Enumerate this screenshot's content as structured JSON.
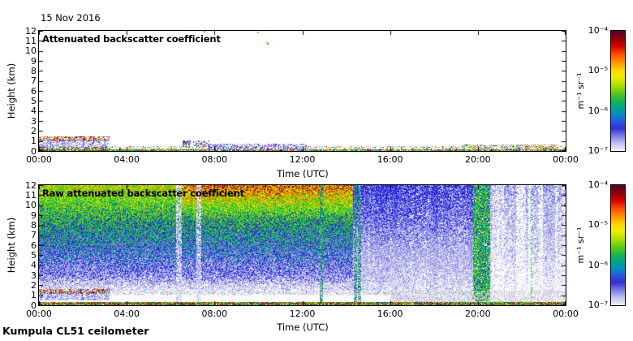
{
  "page": {
    "date": "15 Nov 2016",
    "footer": "Kumpula CL51 ceilometer",
    "background": "#ffffff"
  },
  "chart_data": [
    {
      "id": "attenuated-backscatter",
      "type": "heatmap",
      "title": "Attenuated backscatter coefficient",
      "x": {
        "label": "Time (UTC)",
        "ticks": [
          "00:00",
          "04:00",
          "08:00",
          "12:00",
          "16:00",
          "20:00",
          "00:00"
        ],
        "range_hours": [
          0,
          24
        ],
        "tick_interval_hours": 4
      },
      "y": {
        "label": "Height (km)",
        "ticks": [
          "12",
          "11",
          "10",
          "9",
          "8",
          "7",
          "6",
          "5",
          "4",
          "3",
          "2",
          "1",
          "0"
        ],
        "range_km": [
          0,
          12
        ]
      },
      "colorbar": {
        "label": "m⁻¹ sr⁻¹",
        "ticks": [
          "10⁻⁴",
          "10⁻⁵",
          "10⁻⁶",
          "10⁻⁷"
        ],
        "scale": "log",
        "min": 1e-07,
        "max": 0.0001
      },
      "background": "#ffffff",
      "seed": 13,
      "features": [
        {
          "kind": "speckle",
          "t": [
            0,
            24
          ],
          "h": [
            0.1,
            0.45
          ],
          "density": 0.4,
          "palette": "surface"
        },
        {
          "kind": "speckle",
          "t": [
            0,
            24
          ],
          "h": [
            0,
            0.12
          ],
          "density": 0.85,
          "palette": "groundline"
        },
        {
          "kind": "speckle",
          "t": [
            0,
            3.2
          ],
          "h": [
            0.35,
            1.2
          ],
          "density": 0.75,
          "palette": "aerosol_body"
        },
        {
          "kind": "speckle",
          "t": [
            0,
            3.2
          ],
          "h": [
            1.05,
            1.4
          ],
          "density": 0.5,
          "palette": "aerosol_top"
        },
        {
          "kind": "speckle",
          "t": [
            0,
            3.2
          ],
          "h": [
            0,
            0.35
          ],
          "density": 0.5,
          "palette": "ground_dense"
        },
        {
          "kind": "speckle",
          "t": [
            6.55,
            6.9
          ],
          "h": [
            0.45,
            1.0
          ],
          "density": 0.5,
          "palette": "dark_clump"
        },
        {
          "kind": "speckle",
          "t": [
            7.05,
            7.75
          ],
          "h": [
            0.45,
            1.05
          ],
          "density": 0.45,
          "palette": "dark_clump"
        },
        {
          "kind": "speckle",
          "t": [
            7.7,
            12.2
          ],
          "h": [
            0.1,
            0.65
          ],
          "density": 0.5,
          "palette": "blue_strip"
        },
        {
          "kind": "speckle",
          "t": [
            19.3,
            23.6
          ],
          "h": [
            0.1,
            0.6
          ],
          "density": 0.5,
          "palette": "surface_dense"
        },
        {
          "kind": "dots",
          "points": [
            {
              "t": 7.55,
              "h": 11.9,
              "color": "#22bb22"
            },
            {
              "t": 7.7,
              "h": 11.1,
              "color": "#ff9000"
            },
            {
              "t": 8.2,
              "h": 11.3,
              "color": "#ff9000"
            },
            {
              "t": 10.0,
              "h": 11.8,
              "color": "#ff9000"
            },
            {
              "t": 10.4,
              "h": 10.9,
              "color": "#ffcc00"
            },
            {
              "t": 10.42,
              "h": 10.68,
              "color": "#00aacc"
            }
          ]
        }
      ]
    },
    {
      "id": "raw-attenuated-backscatter",
      "type": "heatmap",
      "title": "Raw attenuated backscatter coefficient",
      "x": {
        "label": "Time (UTC)",
        "ticks": [
          "00:00",
          "04:00",
          "08:00",
          "12:00",
          "16:00",
          "20:00",
          "00:00"
        ],
        "range_hours": [
          0,
          24
        ],
        "tick_interval_hours": 4
      },
      "y": {
        "label": "Height (km)",
        "ticks": [
          "12",
          "11",
          "10",
          "9",
          "8",
          "7",
          "6",
          "5",
          "4",
          "3",
          "2",
          "1",
          "0"
        ],
        "range_km": [
          0,
          12
        ]
      },
      "colorbar": {
        "label": "m⁻¹ sr⁻¹",
        "ticks": [
          "10⁻⁴",
          "10⁻⁵",
          "10⁻⁶",
          "10⁻⁷"
        ],
        "scale": "log",
        "min": 1e-07,
        "max": 0.0001
      },
      "background": "#ffffff",
      "seed": 29,
      "features": [
        {
          "kind": "field",
          "h": [
            0.35,
            12
          ],
          "segments": [
            {
              "t": [
                0,
                14.3
              ],
              "mode": "bright",
              "base": 0.14,
              "hslope": 0.58,
              "noise": 0.36,
              "bump": 0.16,
              "bump_t": [
                6.5,
                14.3
              ],
              "h0": 1.1
            },
            {
              "t": [
                14.3,
                16
              ],
              "mode": "blue",
              "base": 0.1,
              "hslope": 0.3,
              "noise": 0.22,
              "cap": 0.44,
              "sparse": 0.3,
              "h0": 1.1
            },
            {
              "t": [
                16,
                19.8
              ],
              "mode": "blue",
              "base": 0.1,
              "hslope": 0.3,
              "noise": 0.22,
              "cap": 0.44,
              "sparse": 0.3,
              "h0": 0.35
            },
            {
              "t": [
                19.8,
                20.55
              ],
              "mode": "green",
              "base": 0.42,
              "noise": 0.27,
              "h0": 0.45
            },
            {
              "t": [
                20.55,
                24
              ],
              "mode": "sparse",
              "base": 0.08,
              "hslope": 0.18,
              "noise": 0.2,
              "cap": 0.45,
              "green_col_prob": 0.05,
              "h0": 0.35
            }
          ]
        },
        {
          "kind": "vstreaks",
          "h": [
            0.4,
            12
          ],
          "density": 0.72,
          "list": [
            {
              "t": 6.35,
              "w": 0.14,
              "palette": "pale_streak"
            },
            {
              "t": 7.25,
              "w": 0.11,
              "palette": "pale_streak"
            },
            {
              "t": 12.85,
              "w": 0.08,
              "palette": "teal_streak"
            },
            {
              "t": 14.42,
              "w": 0.07,
              "palette": "teal_streak"
            },
            {
              "t": 14.6,
              "w": 0.07,
              "palette": "teal_streak"
            }
          ]
        },
        {
          "kind": "speckle",
          "t": [
            3.2,
            16
          ],
          "h": [
            1.0,
            1.35
          ],
          "density": 0.3,
          "palette": "grey_speckle"
        },
        {
          "kind": "speckle",
          "t": [
            16,
            24
          ],
          "h": [
            0.3,
            1.4
          ],
          "density": 0.45,
          "palette": "grey_speckle"
        },
        {
          "kind": "speckle",
          "t": [
            0,
            3.2
          ],
          "h": [
            0.55,
            1.35
          ],
          "density": 0.8,
          "palette": "aerosol_body"
        },
        {
          "kind": "speckle",
          "t": [
            0,
            3.2
          ],
          "h": [
            1.2,
            1.55
          ],
          "density": 0.55,
          "palette": "aerosol_top"
        },
        {
          "kind": "speckle",
          "t": [
            0,
            24
          ],
          "h": [
            0,
            0.3
          ],
          "density": 0.95,
          "palette": "ground_dense"
        }
      ]
    }
  ],
  "palettes": {
    "surface": [
      [
        "#c8c8c8",
        3
      ],
      [
        "#e81000",
        1.2
      ],
      [
        "#22bb22",
        1.2
      ],
      [
        "#2828d8",
        1
      ],
      [
        "#f0e400",
        0.6
      ],
      [
        "#ff9000",
        0.5
      ],
      [
        "#ffffff",
        2
      ]
    ],
    "surface_dense": [
      [
        "#c8c8c8",
        2
      ],
      [
        "#e81000",
        1.5
      ],
      [
        "#22bb22",
        1.5
      ],
      [
        "#2828d8",
        1.2
      ],
      [
        "#f0e400",
        1
      ],
      [
        "#ff9000",
        0.8
      ],
      [
        "#00a878",
        0.5
      ],
      [
        "#ffffff",
        1.2
      ]
    ],
    "groundline": [
      [
        "#22bb22",
        3
      ],
      [
        "#0a8a0a",
        1.5
      ],
      [
        "#e81000",
        1.5
      ],
      [
        "#f0e400",
        0.8
      ],
      [
        "#2828d8",
        0.7
      ],
      [
        "#111111",
        0.4
      ]
    ],
    "aerosol_body": [
      [
        "#c8c8f4",
        3
      ],
      [
        "#9898e8",
        2.5
      ],
      [
        "#6868e0",
        1.5
      ],
      [
        "#ffffff",
        2
      ],
      [
        "#2828d8",
        0.7
      ]
    ],
    "aerosol_top": [
      [
        "#e81000",
        2
      ],
      [
        "#7c0028",
        1.5
      ],
      [
        "#22bb22",
        1.3
      ],
      [
        "#f0e400",
        1
      ],
      [
        "#ff9000",
        1
      ],
      [
        "#2828d8",
        0.8
      ],
      [
        "#111111",
        0.5
      ]
    ],
    "dark_clump": [
      [
        "#333333",
        2
      ],
      [
        "#555577",
        1.5
      ],
      [
        "#2828d8",
        1.2
      ],
      [
        "#9898e8",
        1
      ],
      [
        "#7c0028",
        0.6
      ],
      [
        "#22bb22",
        0.4
      ]
    ],
    "blue_strip": [
      [
        "#2828d8",
        2
      ],
      [
        "#9898e8",
        2
      ],
      [
        "#c8c8f4",
        1.5
      ],
      [
        "#00a878",
        0.4
      ],
      [
        "#e81000",
        0.4
      ]
    ],
    "grey_speckle": [
      [
        "#d0d0d0",
        3
      ],
      [
        "#b8b8c8",
        1.5
      ],
      [
        "#e8e8f0",
        2
      ]
    ],
    "ground_dense": [
      [
        "#22bb22",
        2.5
      ],
      [
        "#0a8a0a",
        1.5
      ],
      [
        "#e81000",
        2
      ],
      [
        "#7c0028",
        0.8
      ],
      [
        "#f0e400",
        1.2
      ],
      [
        "#ff9000",
        0.8
      ],
      [
        "#2828d8",
        1.2
      ],
      [
        "#111111",
        0.6
      ],
      [
        "#00a878",
        0.6
      ]
    ],
    "pale_streak": [
      [
        "#c8c8f4",
        2
      ],
      [
        "#ffffff",
        2
      ],
      [
        "#9898e8",
        1
      ]
    ],
    "teal_streak": [
      [
        "#00a878",
        2
      ],
      [
        "#28c828",
        2
      ],
      [
        "#2828d8",
        1.5
      ],
      [
        "#c8c8f4",
        1
      ]
    ]
  },
  "levels": [
    [
      0.08,
      "#ffffff"
    ],
    [
      0.2,
      "#d4d4f2"
    ],
    [
      0.33,
      "#8c8ce8"
    ],
    [
      0.45,
      "#2828d8"
    ],
    [
      0.54,
      "#00a878"
    ],
    [
      0.64,
      "#28c828"
    ],
    [
      0.74,
      "#a0d800"
    ],
    [
      0.82,
      "#f0e400"
    ],
    [
      0.89,
      "#ff9000"
    ],
    [
      0.95,
      "#e81000"
    ],
    [
      9.99,
      "#7c0028"
    ]
  ]
}
